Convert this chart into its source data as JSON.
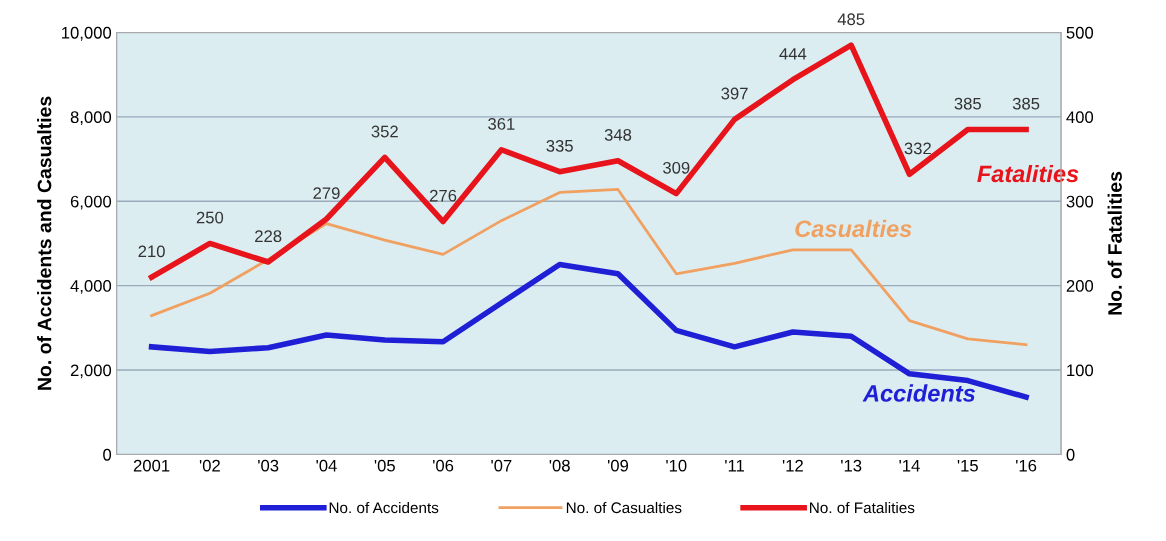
{
  "chart_data": {
    "type": "line",
    "categories": [
      "2001",
      "'02",
      "'03",
      "'04",
      "'05",
      "'06",
      "'07",
      "'08",
      "'09",
      "'10",
      "'11",
      "'12",
      "'13",
      "'14",
      "'15",
      "'16"
    ],
    "ylabel": "No. of Accidents and Casualties",
    "y2label": "No. of Fatalities",
    "ylim": [
      0,
      10000
    ],
    "yticks": [
      0,
      {
        "value": 2000,
        "label": "2,000"
      },
      {
        "value": 4000,
        "label": "4,000"
      },
      {
        "value": 6000,
        "label": "6,000"
      },
      {
        "value": 8000,
        "label": "8,000"
      },
      {
        "value": 10000,
        "label": "10,000"
      }
    ],
    "y2lim": [
      0,
      500
    ],
    "y2ticks": [
      0,
      100,
      200,
      300,
      400,
      500
    ],
    "grid": "y",
    "legend": "bottom",
    "marker": "none",
    "line_style": "solid",
    "series": [
      {
        "name": "No. of Accidents",
        "color": "#1f1fd6",
        "values": [
          2550,
          2440,
          2530,
          2830,
          2710,
          2670,
          3590,
          4500,
          4280,
          2940,
          2550,
          2900,
          2800,
          1910,
          1750,
          1360
        ]
      },
      {
        "name": "No. of Casualties",
        "color": "#f0a060",
        "values": [
          3290,
          3820,
          4620,
          5470,
          5080,
          4740,
          5540,
          6210,
          6280,
          4280,
          4530,
          4850,
          4850,
          3170,
          2740,
          2600
        ]
      },
      {
        "name": "No. of Fatalities",
        "color": "#e8141c",
        "axis": "y2",
        "values": [
          210,
          250,
          228,
          279,
          352,
          276,
          361,
          335,
          348,
          309,
          397,
          444,
          485,
          332,
          385,
          385
        ],
        "value_labels": [
          "210",
          "250",
          "228",
          "279",
          "352",
          "276",
          "361",
          "335",
          "348",
          "309",
          "397",
          "444",
          "485",
          "332",
          "385",
          "385"
        ]
      }
    ],
    "annotations": [
      "Accidents",
      "Casualties",
      "Fatalities"
    ]
  }
}
